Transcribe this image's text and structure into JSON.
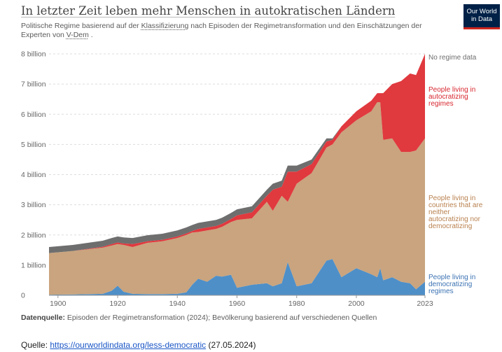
{
  "header": {
    "title": "In letzter Zeit leben mehr Menschen in autokratischen Ländern",
    "subtitle_1": "Politische Regime basierend auf der ",
    "subtitle_link1": "Klassifizierung",
    "subtitle_2": " nach Episoden der Regimetransformation und den Einschätzungen der Experten von ",
    "subtitle_link2": "V-Dem",
    "subtitle_3": " .",
    "logo_line1": "Our World",
    "logo_line2": "in Data"
  },
  "source": {
    "label": "Datenquelle:",
    "text": " Episoden der Regimetransformation (2024); Bevölkerung basierend auf verschiedenen Quellen"
  },
  "footer": {
    "prefix": "Quelle: ",
    "link": "https://ourworldindata.org/less-democratic",
    "suffix": " (27.05.2024)"
  },
  "chart_data": {
    "type": "area",
    "stacked": true,
    "xlim": [
      1897,
      2023
    ],
    "ylim": [
      0,
      8
    ],
    "y_unit": "billion",
    "x_ticks": [
      "1900",
      "1920",
      "1940",
      "1960",
      "1980",
      "2000",
      "2023"
    ],
    "y_ticks": [
      "0",
      "1 billion",
      "2 billion",
      "3 billion",
      "4 billion",
      "5 billion",
      "6 billion",
      "7 billion",
      "8 billion"
    ],
    "grid": "horizontal dashed",
    "legend_position": "right",
    "x": [
      1897,
      1905,
      1915,
      1918,
      1920,
      1922,
      1925,
      1930,
      1935,
      1940,
      1943,
      1945,
      1947,
      1950,
      1953,
      1955,
      1958,
      1960,
      1965,
      1970,
      1972,
      1975,
      1977,
      1980,
      1985,
      1990,
      1992,
      1995,
      2000,
      2005,
      2007,
      2008,
      2009,
      2012,
      2015,
      2018,
      2020,
      2023
    ],
    "series": [
      {
        "name": "People living in democratizing regimes",
        "color": "#4e8fc8",
        "values": [
          0.02,
          0.03,
          0.05,
          0.15,
          0.32,
          0.12,
          0.05,
          0.04,
          0.04,
          0.05,
          0.1,
          0.35,
          0.55,
          0.45,
          0.65,
          0.62,
          0.68,
          0.25,
          0.35,
          0.4,
          0.3,
          0.4,
          1.1,
          0.3,
          0.4,
          1.15,
          1.2,
          0.6,
          0.9,
          0.7,
          0.6,
          0.9,
          0.5,
          0.6,
          0.45,
          0.4,
          0.2,
          0.45
        ]
      },
      {
        "name": "People living in countries that are neither autocratizing nor democratizing",
        "color": "#c9a47e",
        "values": [
          1.38,
          1.44,
          1.53,
          1.5,
          1.38,
          1.55,
          1.55,
          1.7,
          1.75,
          1.85,
          1.9,
          1.73,
          1.55,
          1.7,
          1.55,
          1.65,
          1.75,
          2.25,
          2.2,
          2.7,
          2.5,
          2.9,
          2.0,
          3.4,
          3.65,
          3.75,
          3.8,
          4.8,
          4.9,
          5.4,
          5.8,
          5.5,
          4.65,
          4.6,
          4.3,
          4.35,
          4.6,
          4.75
        ]
      },
      {
        "name": "People living in autocratizing regimes",
        "color": "#e0393e",
        "values": [
          0.0,
          0.0,
          0.03,
          0.05,
          0.05,
          0.05,
          0.1,
          0.05,
          0.05,
          0.05,
          0.05,
          0.05,
          0.1,
          0.1,
          0.1,
          0.1,
          0.1,
          0.15,
          0.2,
          0.2,
          0.7,
          0.3,
          1.0,
          0.4,
          0.3,
          0.2,
          0.15,
          0.2,
          0.3,
          0.35,
          0.3,
          0.3,
          1.55,
          1.8,
          2.35,
          2.6,
          2.5,
          2.8
        ]
      },
      {
        "name": "No regime data",
        "color": "#6e6e6e",
        "values": [
          0.2,
          0.2,
          0.2,
          0.2,
          0.2,
          0.2,
          0.2,
          0.2,
          0.2,
          0.2,
          0.2,
          0.2,
          0.2,
          0.2,
          0.2,
          0.2,
          0.2,
          0.2,
          0.2,
          0.2,
          0.2,
          0.2,
          0.2,
          0.2,
          0.15,
          0.1,
          0.05,
          0.0,
          0.0,
          0.0,
          0.0,
          0.0,
          0.0,
          0.0,
          0.0,
          0.0,
          0.0,
          0.0
        ]
      }
    ],
    "legend": [
      {
        "label": "No regime data",
        "color": "#6e6e6e"
      },
      {
        "label": "People living in autocratizing regimes",
        "color": "#d7262e"
      },
      {
        "label": "People living in countries that are neither autocratizing nor democratizing",
        "color": "#b9814f"
      },
      {
        "label": "People living in democratizing regimes",
        "color": "#3b72b3"
      }
    ]
  }
}
